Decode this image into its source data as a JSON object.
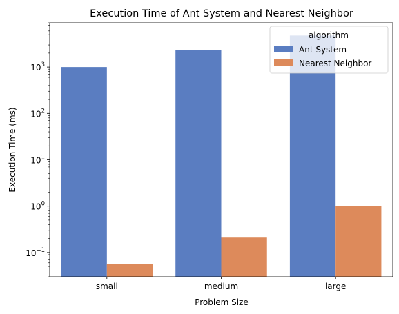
{
  "chart_data": {
    "type": "bar",
    "title": "Execution Time of Ant System and Nearest Neighbor",
    "xlabel": "Problem Size",
    "ylabel": "Execution Time (ms)",
    "yscale": "log",
    "ylim": [
      0.03,
      9000
    ],
    "categories": [
      "small",
      "medium",
      "large"
    ],
    "series": [
      {
        "name": "Ant System",
        "color": "#5a7dc1",
        "values": [
          1000,
          2300,
          4800
        ]
      },
      {
        "name": "Nearest Neighbor",
        "color": "#dd8a5b",
        "values": [
          0.057,
          0.21,
          1.0
        ]
      }
    ],
    "y_ticks": [
      {
        "value": 0.1,
        "base": "10",
        "exp": "−1"
      },
      {
        "value": 1,
        "base": "10",
        "exp": "0"
      },
      {
        "value": 10,
        "base": "10",
        "exp": "1"
      },
      {
        "value": 100,
        "base": "10",
        "exp": "2"
      },
      {
        "value": 1000,
        "base": "10",
        "exp": "3"
      }
    ],
    "legend": {
      "title": "algorithm",
      "position": "top-right"
    },
    "grid": false
  }
}
